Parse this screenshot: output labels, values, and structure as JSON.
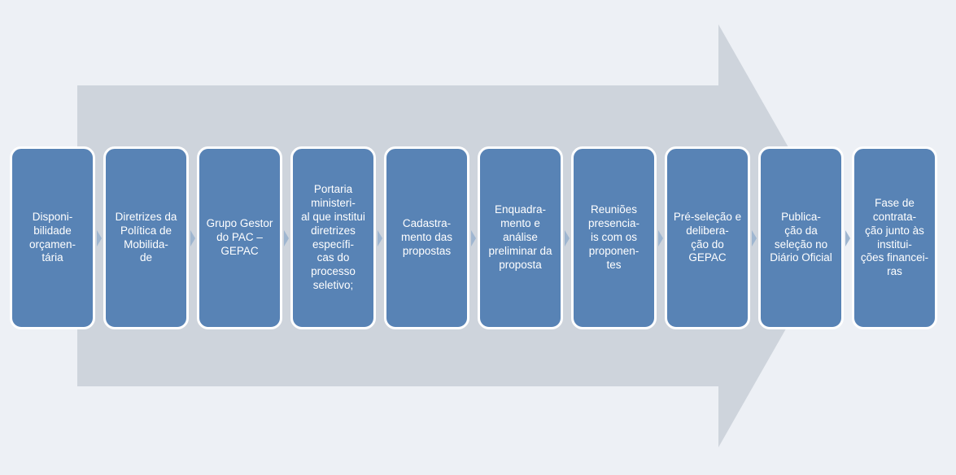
{
  "diagram": {
    "type": "flowchart",
    "direction": "horizontal",
    "background_color": "#edf0f5",
    "arrow": {
      "body_color": "#ced4dc",
      "head_color": "#ced4dc"
    },
    "step_box": {
      "fill_color": "#5883b5",
      "border_color": "#ffffff",
      "border_width": 3,
      "border_radius": 14,
      "text_color": "#ffffff",
      "font_size": 13.5
    },
    "connector_color": "#9fb6d0",
    "steps": [
      {
        "label": "Disponi-\nbilidade orçamen-\ntária"
      },
      {
        "label": "Diretrizes da Política de Mobilida-\nde"
      },
      {
        "label": "Grupo Gestor do PAC – GEPAC"
      },
      {
        "label": "Portaria ministeri-\nal que institui diretrizes específi-\ncas do processo seletivo;"
      },
      {
        "label": "Cadastra-\nmento das propostas"
      },
      {
        "label": "Enquadra-\nmento e análise preliminar da proposta"
      },
      {
        "label": "Reuniões presencia-\nis com os proponen-\ntes"
      },
      {
        "label": "Pré-seleção e delibera-\nção do GEPAC"
      },
      {
        "label": "Publica-\nção da seleção no Diário Oficial"
      },
      {
        "label": "Fase de contrata-\nção junto às institui-\nções financei-\nras"
      }
    ]
  }
}
